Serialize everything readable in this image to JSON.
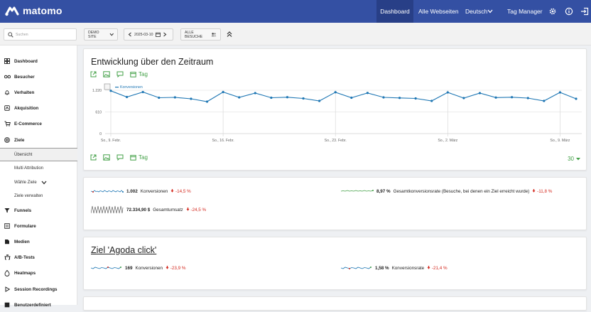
{
  "brand": {
    "name": "matomo"
  },
  "topnav": {
    "dashboard": "Dashboard",
    "all_sites": "Alle Webseiten",
    "language": "Deutsch",
    "tag_manager": "Tag Manager"
  },
  "toolbar": {
    "search_placeholder": "Suchen",
    "site": "DEMO SITE",
    "date": "2025-03-10",
    "segment": "ALLE BESUCHE"
  },
  "sidebar": {
    "items": [
      {
        "label": "Dashboard",
        "icon": "dashboard-icon"
      },
      {
        "label": "Besucher",
        "icon": "visitors-icon"
      },
      {
        "label": "Verhalten",
        "icon": "bell-icon"
      },
      {
        "label": "Akquisition",
        "icon": "acquisition-icon"
      },
      {
        "label": "E-Commerce",
        "icon": "cart-icon"
      },
      {
        "label": "Ziele",
        "icon": "target-icon"
      }
    ],
    "goal_subitems": [
      "Übersicht",
      "Multi Attribution",
      "Wähle Ziele",
      "Ziele verwalten"
    ],
    "items_after": [
      {
        "label": "Funnels",
        "icon": "funnel-icon"
      },
      {
        "label": "Formulare",
        "icon": "form-icon"
      },
      {
        "label": "Medien",
        "icon": "media-icon"
      },
      {
        "label": "A/B-Tests",
        "icon": "ab-test-icon"
      },
      {
        "label": "Heatmaps",
        "icon": "heatmap-icon"
      },
      {
        "label": "Session Recordings",
        "icon": "play-icon"
      },
      {
        "label": "Benutzerdefiniert",
        "icon": "custom-icon"
      }
    ]
  },
  "evolution": {
    "title": "Entwicklung über den Zeitraum",
    "period_label": "Tag",
    "per_page": "30"
  },
  "chart_data": {
    "type": "line",
    "title": "Entwicklung über den Zeitraum",
    "series": [
      {
        "name": "Konversionen",
        "color": "#1f77b4",
        "values": [
          1205,
          1030,
          1170,
          1010,
          1020,
          980,
          900,
          1170,
          1020,
          1140,
          1010,
          1025,
          990,
          920,
          1165,
          1010,
          1145,
          1020,
          1005,
          990,
          920,
          1160,
          1000,
          1140,
          1015,
          1025,
          1000,
          920,
          1160,
          980
        ]
      }
    ],
    "x_tick_labels": [
      "So., 9. Febr.",
      "So., 16. Febr.",
      "So., 23. Febr.",
      "So., 2. März",
      "So., 9. März"
    ],
    "x_tick_index": [
      0,
      7,
      14,
      21,
      28
    ],
    "y_tick_labels": [
      "1.220",
      "610",
      "0"
    ],
    "ylim": [
      0,
      1220
    ],
    "legend": "top-left"
  },
  "sparklines": {
    "conversions": {
      "value": "1.002",
      "label": "Konversionen",
      "change": "-14,5 %"
    },
    "conversion_rate": {
      "value": "8,97 %",
      "label": "Gesamtkonversionsrate (Besuche, bei denen ein Ziel erreicht wurde)",
      "change": "-11,8 %"
    },
    "revenue": {
      "value": "72.334,90 $",
      "label": "Gesamtumsatz",
      "change": "-24,5 %"
    }
  },
  "goal": {
    "title": "Ziel 'Agoda click'",
    "conversions": {
      "value": "169",
      "label": "Konversionen",
      "change": "-23,9 %"
    },
    "conversion_rate": {
      "value": "1,58 %",
      "label": "Konversionsrate",
      "change": "-21,4 %"
    }
  },
  "colors": {
    "topbar": "#3450a3",
    "accent_green": "#43a047",
    "negative": "#d4291f",
    "series": "#1f77b4"
  }
}
